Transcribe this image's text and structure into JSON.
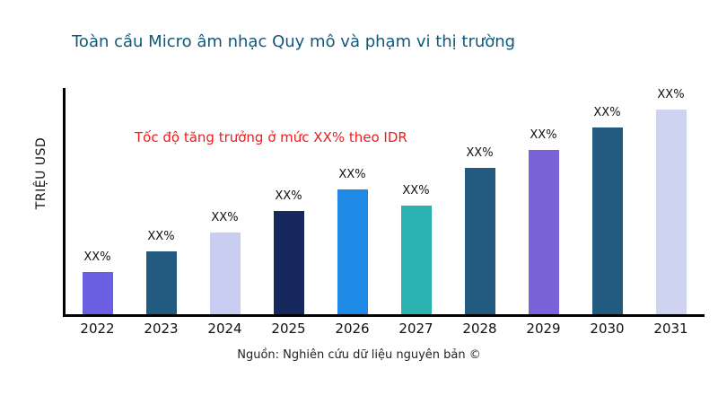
{
  "page": {
    "title": "Toàn cầu Micro âm nhạc Quy mô và phạm vi thị trường",
    "source": "Nguồn: Nghiên cứu dữ liệu nguyên bản ©"
  },
  "chart_data": {
    "type": "bar",
    "title": "Toàn cầu Micro âm nhạc Quy mô và phạm vi thị trường",
    "xlabel": "",
    "ylabel": "TRIỆU USD",
    "annotation": "Tốc độ tăng trưởng ở mức XX% theo IDR",
    "annotation_color": "#ee1c1c",
    "categories": [
      "2022",
      "2023",
      "2024",
      "2025",
      "2026",
      "2027",
      "2028",
      "2029",
      "2030",
      "2031"
    ],
    "values": [
      47,
      69,
      90,
      114,
      138,
      120,
      162,
      182,
      206,
      230
    ],
    "value_labels": [
      "XX%",
      "XX%",
      "XX%",
      "XX%",
      "XX%",
      "XX%",
      "XX%",
      "XX%",
      "XX%",
      "XX%"
    ],
    "bar_colors": [
      "#6c60e2",
      "#235a80",
      "#c9cdf2",
      "#17285c",
      "#1e8ae6",
      "#2ab3b0",
      "#235a80",
      "#7a63d8",
      "#235a80",
      "#ced3f2"
    ],
    "ylim": [
      0,
      250
    ],
    "grid": false,
    "legend": null,
    "title_color": "#10587a",
    "axis_color": "#000000"
  }
}
